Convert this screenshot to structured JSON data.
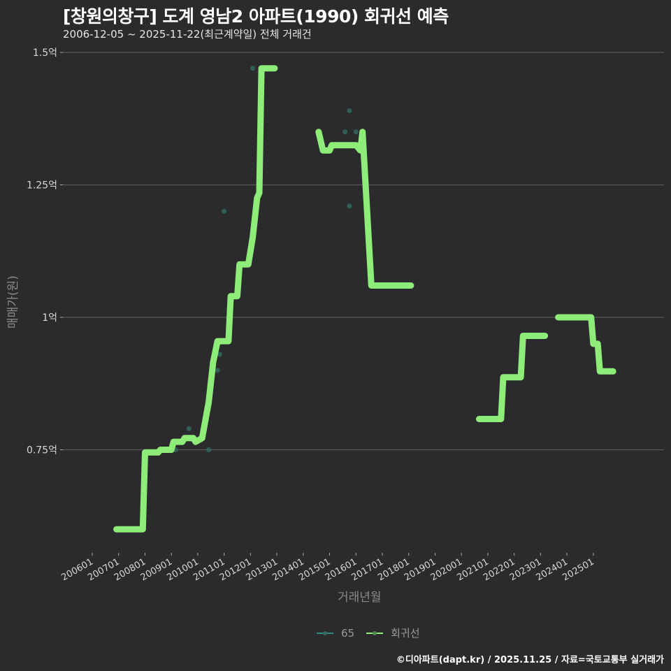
{
  "header": {
    "title": "[창원의창구] 도계 영남2 아파트(1990) 회귀선 예측",
    "subtitle": "2006-12-05 ~ 2025-11-22(최근계약일) 전체 거래건"
  },
  "axes": {
    "ylabel": "매매가(원)",
    "xlabel": "거래년월"
  },
  "legend": {
    "items": [
      {
        "label": "65",
        "color": "#2e8b80"
      },
      {
        "label": "회귀선",
        "color": "#90ee7a"
      }
    ]
  },
  "footer": {
    "credit": "©디아파트(dapt.kr) / 2025.11.25 / 자료=국토교통부 실거래가"
  },
  "colors": {
    "background": "#2b2b2d",
    "regression_line": "#8ded78",
    "scatter": "#2f6a5c",
    "grid": "#5a5a5a"
  },
  "chart_data": {
    "type": "line",
    "title": "[창원의창구] 도계 영남2 아파트(1990) 회귀선 예측",
    "subtitle": "2006-12-05 ~ 2025-11-22(최근계약일) 전체 거래건",
    "xlabel": "거래년월",
    "ylabel": "매매가(원)",
    "y_ticks": [
      "0.75억",
      "1억",
      "1.25억",
      "1.5억"
    ],
    "y_tick_values": [
      0.75,
      1.0,
      1.25,
      1.5
    ],
    "ylim": [
      0.56,
      1.52
    ],
    "x_ticks": [
      "200601",
      "200701",
      "200801",
      "200901",
      "201001",
      "201101",
      "201201",
      "201301",
      "201401",
      "201501",
      "201601",
      "201701",
      "201801",
      "201901",
      "202001",
      "202101",
      "202201",
      "202301",
      "202401",
      "202501"
    ],
    "grid": true,
    "legend_position": "bottom",
    "series": [
      {
        "name": "회귀선",
        "unit": "억",
        "segments": [
          [
            {
              "x": "2006-12",
              "y": 0.6
            },
            {
              "x": "2007-12",
              "y": 0.6
            },
            {
              "x": "2008-01",
              "y": 0.745
            },
            {
              "x": "2008-07",
              "y": 0.745
            },
            {
              "x": "2008-08",
              "y": 0.75
            },
            {
              "x": "2009-01",
              "y": 0.75
            },
            {
              "x": "2009-02",
              "y": 0.765
            },
            {
              "x": "2009-06",
              "y": 0.765
            },
            {
              "x": "2009-07",
              "y": 0.772
            },
            {
              "x": "2009-11",
              "y": 0.772
            },
            {
              "x": "2009-12",
              "y": 0.765
            },
            {
              "x": "2010-03",
              "y": 0.772
            },
            {
              "x": "2010-06",
              "y": 0.84
            },
            {
              "x": "2010-08",
              "y": 0.915
            },
            {
              "x": "2010-10",
              "y": 0.955
            },
            {
              "x": "2011-03",
              "y": 0.955
            },
            {
              "x": "2011-04",
              "y": 1.04
            },
            {
              "x": "2011-07",
              "y": 1.04
            },
            {
              "x": "2011-08",
              "y": 1.1
            },
            {
              "x": "2011-12",
              "y": 1.1
            },
            {
              "x": "2012-02",
              "y": 1.15
            },
            {
              "x": "2012-04",
              "y": 1.225
            },
            {
              "x": "2012-05",
              "y": 1.235
            },
            {
              "x": "2012-06",
              "y": 1.47
            },
            {
              "x": "2012-12",
              "y": 1.47
            }
          ],
          [
            {
              "x": "2014-08",
              "y": 1.35
            },
            {
              "x": "2014-10",
              "y": 1.315
            },
            {
              "x": "2015-01",
              "y": 1.315
            },
            {
              "x": "2015-02",
              "y": 1.325
            },
            {
              "x": "2016-01",
              "y": 1.325
            },
            {
              "x": "2016-03",
              "y": 1.315
            },
            {
              "x": "2016-04",
              "y": 1.35
            },
            {
              "x": "2016-06",
              "y": 1.205
            },
            {
              "x": "2016-08",
              "y": 1.06
            },
            {
              "x": "2018-02",
              "y": 1.06
            }
          ],
          [
            {
              "x": "2020-09",
              "y": 0.808
            },
            {
              "x": "2021-07",
              "y": 0.808
            },
            {
              "x": "2021-08",
              "y": 0.887
            },
            {
              "x": "2022-04",
              "y": 0.887
            },
            {
              "x": "2022-05",
              "y": 0.965
            },
            {
              "x": "2023-03",
              "y": 0.965
            }
          ],
          [
            {
              "x": "2023-09",
              "y": 1.0
            },
            {
              "x": "2024-12",
              "y": 1.0
            },
            {
              "x": "2025-01",
              "y": 0.95
            },
            {
              "x": "2025-03",
              "y": 0.95
            },
            {
              "x": "2025-04",
              "y": 0.898
            },
            {
              "x": "2025-10",
              "y": 0.898
            }
          ]
        ]
      },
      {
        "name": "65",
        "type": "scatter",
        "unit": "억",
        "points": [
          {
            "x": "2009-03",
            "y": 0.75
          },
          {
            "x": "2009-09",
            "y": 0.79
          },
          {
            "x": "2010-06",
            "y": 0.75
          },
          {
            "x": "2010-10",
            "y": 0.9
          },
          {
            "x": "2010-11",
            "y": 0.93
          },
          {
            "x": "2011-01",
            "y": 1.2
          },
          {
            "x": "2011-03",
            "y": 1.0
          },
          {
            "x": "2012-02",
            "y": 1.47
          },
          {
            "x": "2015-08",
            "y": 1.35
          },
          {
            "x": "2015-10",
            "y": 1.39
          },
          {
            "x": "2015-10",
            "y": 1.21
          },
          {
            "x": "2016-01",
            "y": 1.35
          }
        ]
      }
    ]
  }
}
